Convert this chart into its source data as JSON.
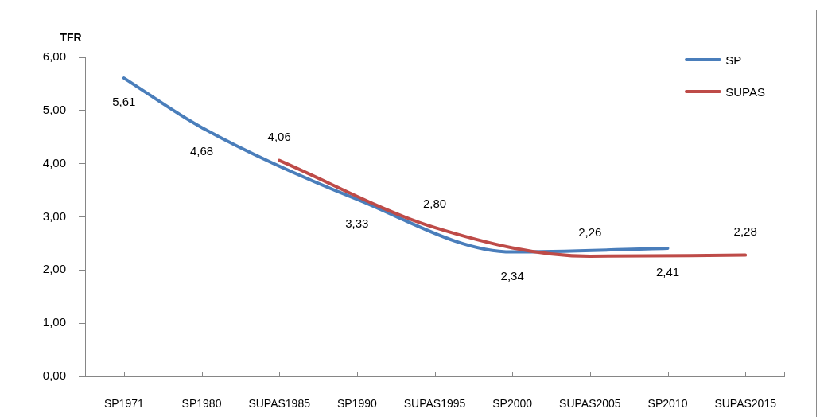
{
  "chart_data": {
    "type": "line",
    "ylabel": "TFR",
    "categories": [
      "SP1971",
      "SP1980",
      "SUPAS1985",
      "SP1990",
      "SUPAS1995",
      "SP2000",
      "SUPAS2005",
      "SP2010",
      "SUPAS2015"
    ],
    "series": [
      {
        "name": "SP",
        "color": "#4a7ebb",
        "values": [
          5.61,
          4.68,
          null,
          3.33,
          null,
          2.34,
          null,
          2.41,
          null
        ],
        "value_labels": [
          "5,61",
          "4,68",
          null,
          "3,33",
          null,
          "2,34",
          null,
          "2,41",
          null
        ]
      },
      {
        "name": "SUPAS",
        "color": "#be4b48",
        "values": [
          null,
          null,
          4.06,
          null,
          2.8,
          null,
          2.26,
          null,
          2.28
        ],
        "value_labels": [
          null,
          null,
          "4,06",
          null,
          "2,80",
          null,
          "2,26",
          null,
          "2,28"
        ]
      }
    ],
    "ylim": [
      0,
      6
    ],
    "yticks": [
      {
        "value": 0,
        "label": "0,00"
      },
      {
        "value": 1,
        "label": "1,00"
      },
      {
        "value": 2,
        "label": "2,00"
      },
      {
        "value": 3,
        "label": "3,00"
      },
      {
        "value": 4,
        "label": "4,00"
      },
      {
        "value": 5,
        "label": "5,00"
      },
      {
        "value": 6,
        "label": "6,00"
      }
    ],
    "legend": "top right"
  }
}
